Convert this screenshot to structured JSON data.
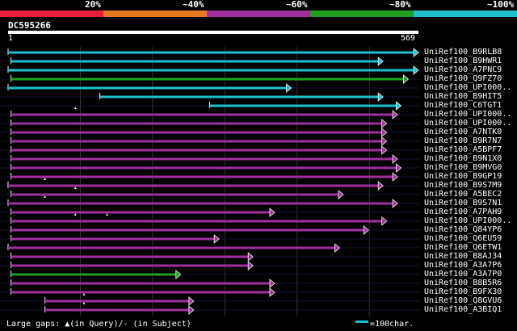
{
  "legend": [
    {
      "label": "20%",
      "color": "#e8203c"
    },
    {
      "label": "~40%",
      "color": "#e87820"
    },
    {
      "label": "~60%",
      "color": "#a030a0"
    },
    {
      "label": "~80%",
      "color": "#20a020"
    },
    {
      "label": "~100%",
      "color": "#20c0d0"
    }
  ],
  "query": {
    "id": "DC595266",
    "start": "1",
    "end": "569"
  },
  "hits": [
    {
      "name": "UniRef100_B9RLB8",
      "start": 1,
      "end": 569,
      "color": "#20c0d0",
      "marks": []
    },
    {
      "name": "UniRef100_B9HWR1",
      "start": 5,
      "end": 520,
      "color": "#20c0d0",
      "marks": []
    },
    {
      "name": "UniRef100_A7PNC9",
      "start": 1,
      "end": 569,
      "color": "#20c0d0",
      "marks": []
    },
    {
      "name": "UniRef100_Q9FZ70",
      "start": 5,
      "end": 555,
      "color": "#20a020",
      "marks": []
    },
    {
      "name": "UniRef100_UPI000..",
      "start": 1,
      "end": 393,
      "color": "#20c0d0",
      "marks": []
    },
    {
      "name": "UniRef100_B9HIT5",
      "start": 128,
      "end": 520,
      "color": "#20c0d0",
      "marks": []
    },
    {
      "name": "UniRef100_C6TGT1",
      "start": 280,
      "end": 545,
      "color": "#20c0d0",
      "marks": []
    },
    {
      "name": "UniRef100_UPI000..",
      "start": 5,
      "end": 540,
      "color": "#a030a0",
      "marks": [
        94
      ]
    },
    {
      "name": "UniRef100_UPI000..",
      "start": 5,
      "end": 525,
      "color": "#a030a0",
      "marks": []
    },
    {
      "name": "UniRef100_A7NTK0",
      "start": 5,
      "end": 525,
      "color": "#a030a0",
      "marks": []
    },
    {
      "name": "UniRef100_B9R7N7",
      "start": 5,
      "end": 525,
      "color": "#a030a0",
      "marks": []
    },
    {
      "name": "UniRef100_A5BPF7",
      "start": 5,
      "end": 525,
      "color": "#a030a0",
      "marks": []
    },
    {
      "name": "UniRef100_B9N1X0",
      "start": 5,
      "end": 540,
      "color": "#a030a0",
      "marks": []
    },
    {
      "name": "UniRef100_B9MVG0",
      "start": 5,
      "end": 545,
      "color": "#a030a0",
      "marks": []
    },
    {
      "name": "UniRef100_B9GP19",
      "start": 5,
      "end": 540,
      "color": "#a030a0",
      "marks": []
    },
    {
      "name": "UniRef100_B9S7M9",
      "start": 1,
      "end": 520,
      "color": "#a030a0",
      "marks": [
        52
      ]
    },
    {
      "name": "UniRef100_A5BEC2",
      "start": 5,
      "end": 465,
      "color": "#a030a0",
      "marks": [
        94
      ]
    },
    {
      "name": "UniRef100_B9S7N1",
      "start": 1,
      "end": 540,
      "color": "#a030a0",
      "marks": [
        52
      ]
    },
    {
      "name": "UniRef100_A7PAH9",
      "start": 5,
      "end": 370,
      "color": "#a030a0",
      "marks": []
    },
    {
      "name": "UniRef100_UPI000..",
      "start": 5,
      "end": 525,
      "color": "#a030a0",
      "marks": [
        94,
        138
      ]
    },
    {
      "name": "UniRef100_Q84YP6",
      "start": 5,
      "end": 500,
      "color": "#a030a0",
      "marks": []
    },
    {
      "name": "UniRef100_Q6EU59",
      "start": 5,
      "end": 293,
      "color": "#a030a0",
      "marks": []
    },
    {
      "name": "UniRef100_Q6ETW1",
      "start": 1,
      "end": 460,
      "color": "#a030a0",
      "marks": []
    },
    {
      "name": "UniRef100_B8AJ34",
      "start": 5,
      "end": 340,
      "color": "#a030a0",
      "marks": []
    },
    {
      "name": "UniRef100_A3A7P6",
      "start": 5,
      "end": 340,
      "color": "#a030a0",
      "marks": []
    },
    {
      "name": "UniRef100_A3A7P0",
      "start": 5,
      "end": 240,
      "color": "#20a020",
      "marks": []
    },
    {
      "name": "UniRef100_B8B5R6",
      "start": 5,
      "end": 370,
      "color": "#a030a0",
      "marks": []
    },
    {
      "name": "UniRef100_B9FX30",
      "start": 5,
      "end": 370,
      "color": "#a030a0",
      "marks": []
    },
    {
      "name": "UniRef100_Q8GVU6",
      "start": 52,
      "end": 258,
      "color": "#a030a0",
      "marks": [
        106
      ]
    },
    {
      "name": "UniRef100_A3BIQ1",
      "start": 52,
      "end": 258,
      "color": "#a030a0",
      "marks": [
        106
      ]
    }
  ],
  "footer": {
    "gaps_text": "Large gaps: ▲(in Query)/- (in Subject)",
    "scale_label": "=100char.",
    "scale_color": "#20c0d0"
  }
}
